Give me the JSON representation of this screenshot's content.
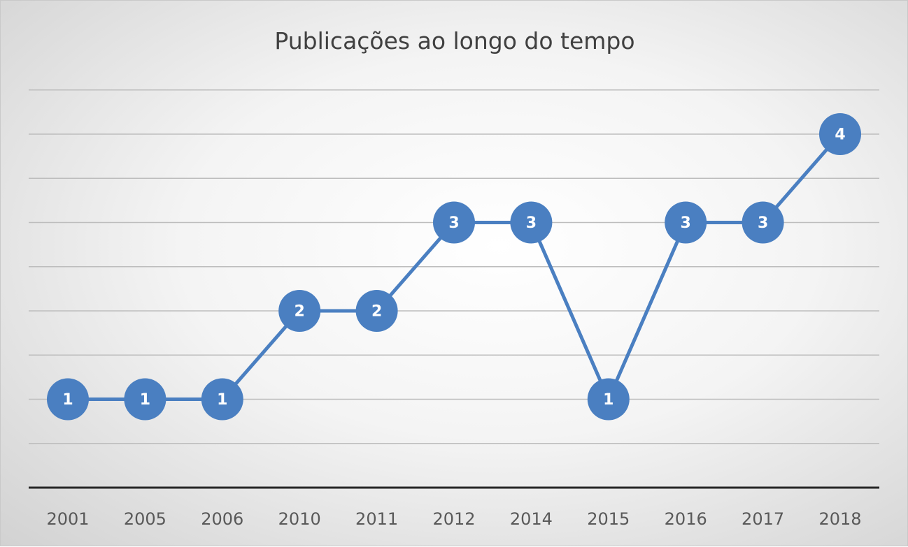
{
  "chart_data": {
    "type": "line",
    "title": "Publicações ao longo do tempo",
    "xlabel": "",
    "ylabel": "",
    "categories": [
      "2001",
      "2005",
      "2006",
      "2010",
      "2011",
      "2012",
      "2014",
      "2015",
      "2016",
      "2017",
      "2018"
    ],
    "series": [
      {
        "values": [
          1,
          1,
          1,
          2,
          2,
          3,
          3,
          1,
          3,
          3,
          4
        ]
      }
    ],
    "ylim": [
      0,
      4.5
    ],
    "grid_step": 0.5,
    "grid": true,
    "legend": "none",
    "data_labels": true,
    "colors": {
      "series": "#4a7fc1",
      "grid": "#bdbdbd",
      "axis": "#262626",
      "label": "#ffffff",
      "tick": "#595959",
      "title": "#404040"
    }
  }
}
